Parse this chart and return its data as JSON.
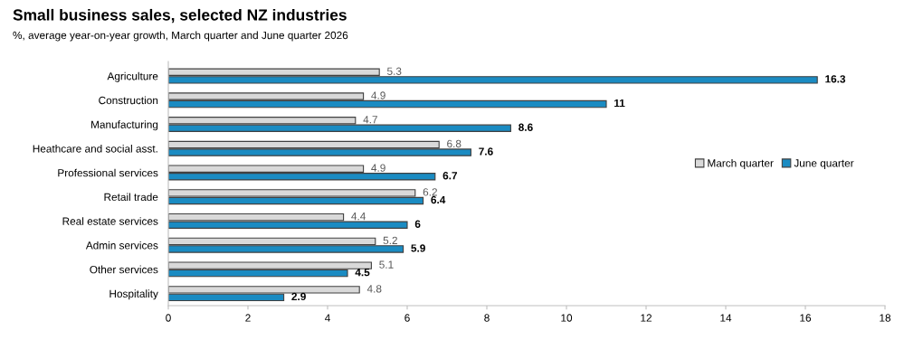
{
  "chart_data": {
    "type": "bar",
    "orientation": "horizontal",
    "title": "Small business sales, selected NZ industries",
    "subtitle": "%, average year-on-year growth, March quarter and June quarter 2026",
    "categories": [
      "Agriculture",
      "Construction",
      "Manufacturing",
      "Heathcare and social asst.",
      "Professional services",
      "Retail trade",
      "Real estate services",
      "Admin services",
      "Other services",
      "Hospitality"
    ],
    "series": [
      {
        "name": "March quarter",
        "color": "#d9d9d9",
        "values": [
          5.3,
          4.9,
          4.7,
          6.8,
          4.9,
          6.2,
          4.4,
          5.2,
          5.1,
          4.8
        ]
      },
      {
        "name": "June quarter",
        "color": "#1a8bc2",
        "values": [
          16.3,
          11,
          8.6,
          7.6,
          6.7,
          6.4,
          6,
          5.9,
          4.5,
          2.9
        ]
      }
    ],
    "xlim": [
      0,
      18
    ],
    "xticks": [
      0,
      2,
      4,
      6,
      8,
      10,
      12,
      14,
      16,
      18
    ],
    "data_labels": true,
    "legend": "right",
    "grid": false
  }
}
